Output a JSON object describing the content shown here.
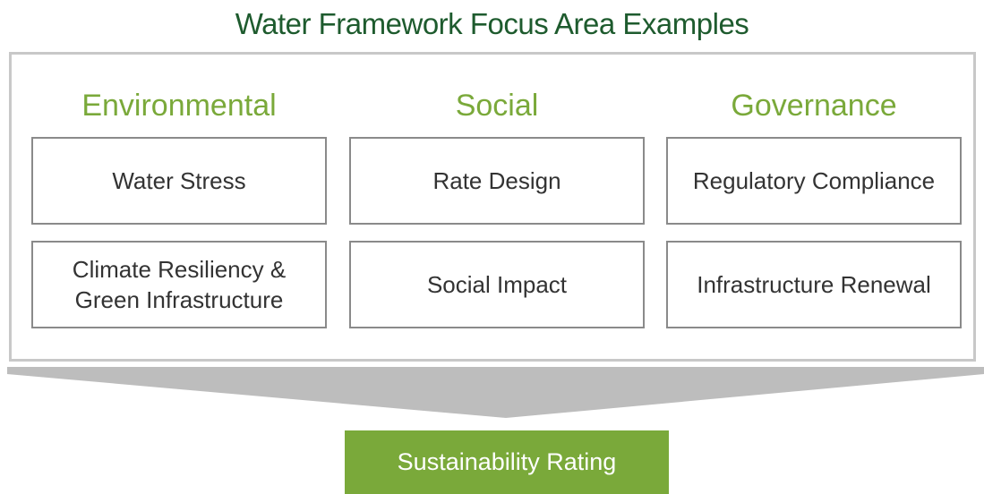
{
  "title": "Water Framework Focus Area Examples",
  "columns": [
    {
      "heading": "Environmental",
      "items": [
        "Water Stress",
        "Climate Resiliency & Green Infrastructure"
      ]
    },
    {
      "heading": "Social",
      "items": [
        "Rate Design",
        "Social Impact"
      ]
    },
    {
      "heading": "Governance",
      "items": [
        "Regulatory Compliance",
        "Infrastructure Renewal"
      ]
    }
  ],
  "result": "Sustainability Rating"
}
